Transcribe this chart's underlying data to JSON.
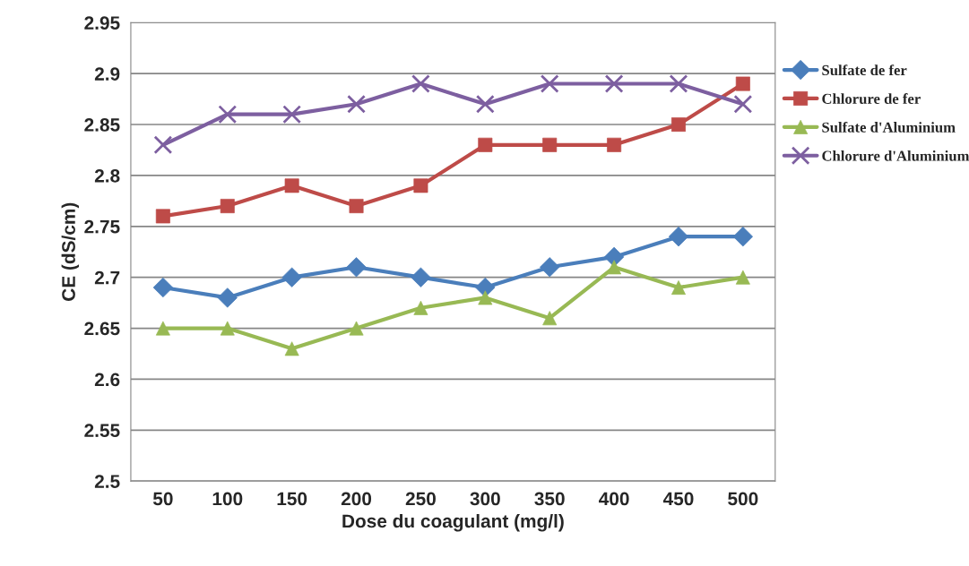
{
  "chart_data": {
    "type": "line",
    "xlabel": "Dose du coagulant (mg/l)",
    "ylabel": "CE (dS/cm)",
    "categories": [
      "50",
      "100",
      "150",
      "200",
      "250",
      "300",
      "350",
      "400",
      "450",
      "500"
    ],
    "series": [
      {
        "name": "Sulfate de fer",
        "color": "#4a7ebb",
        "marker": "diamond",
        "values": [
          2.69,
          2.68,
          2.7,
          2.71,
          2.7,
          2.69,
          2.71,
          2.72,
          2.74,
          2.74
        ]
      },
      {
        "name": "Chlorure de fer",
        "color": "#be4b48",
        "marker": "square",
        "values": [
          2.76,
          2.77,
          2.79,
          2.77,
          2.79,
          2.83,
          2.83,
          2.83,
          2.85,
          2.89
        ]
      },
      {
        "name": "Sulfate d'Aluminium",
        "color": "#98b954",
        "marker": "triangle",
        "values": [
          2.65,
          2.65,
          2.63,
          2.65,
          2.67,
          2.68,
          2.66,
          2.71,
          2.69,
          2.7
        ]
      },
      {
        "name": "Chlorure d'Aluminium",
        "color": "#7d5fa0",
        "marker": "cross",
        "values": [
          2.83,
          2.86,
          2.86,
          2.87,
          2.89,
          2.87,
          2.89,
          2.89,
          2.89,
          2.87
        ]
      }
    ],
    "ylim": [
      2.5,
      2.95
    ],
    "yticks": [
      2.5,
      2.55,
      2.6,
      2.65,
      2.7,
      2.75,
      2.8,
      2.85,
      2.9,
      2.95
    ],
    "grid": "y",
    "legend": "right",
    "line_style": "solid"
  }
}
